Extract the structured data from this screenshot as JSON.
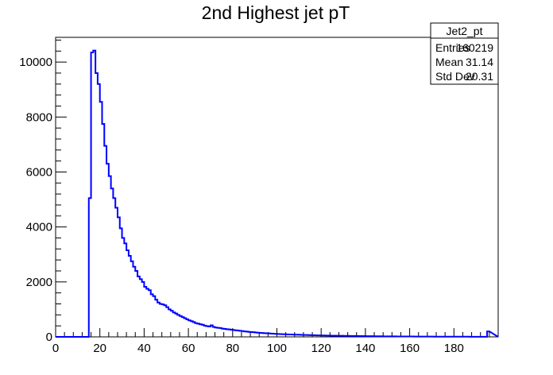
{
  "chart_data": {
    "type": "histogram",
    "title": "2nd Highest jet pT",
    "xlabel": "",
    "ylabel": "",
    "xlim": [
      0,
      200
    ],
    "ylim": [
      0,
      10900
    ],
    "x_ticks": [
      "0",
      "20",
      "40",
      "60",
      "80",
      "100",
      "120",
      "140",
      "160",
      "180"
    ],
    "y_ticks": [
      "0",
      "2000",
      "4000",
      "6000",
      "8000",
      "10000"
    ],
    "line_color": "#0000ff",
    "bin_width": 1,
    "bin_start": 15,
    "values": [
      5050,
      10350,
      10420,
      9600,
      9200,
      8550,
      7750,
      6950,
      6300,
      5850,
      5400,
      5050,
      4700,
      4350,
      3950,
      3600,
      3400,
      3150,
      2950,
      2750,
      2550,
      2400,
      2200,
      2100,
      2000,
      1820,
      1750,
      1700,
      1550,
      1480,
      1350,
      1250,
      1200,
      1180,
      1150,
      1080,
      1000,
      950,
      890,
      850,
      800,
      760,
      720,
      680,
      640,
      600,
      570,
      540,
      500,
      480,
      460,
      440,
      410,
      390,
      380,
      420,
      360,
      340,
      330,
      320,
      300,
      290,
      280,
      270,
      260,
      250,
      240,
      230,
      220,
      210,
      200,
      190,
      180,
      175,
      170,
      160,
      150,
      145,
      140,
      135,
      130,
      125,
      120,
      115,
      110,
      105,
      100,
      98,
      95,
      90,
      88,
      85,
      82,
      80,
      78,
      75,
      72,
      70,
      68,
      65,
      62,
      60,
      58,
      56,
      54,
      52,
      50,
      48,
      46,
      45,
      44,
      42,
      40,
      39,
      38,
      37,
      36,
      35,
      34,
      33,
      32,
      31,
      30,
      29,
      28,
      27,
      26,
      25,
      24,
      23,
      22,
      21,
      20,
      19,
      19,
      18,
      18,
      17,
      17,
      16,
      16,
      15,
      15,
      14,
      14,
      13,
      13,
      12,
      12,
      12,
      11,
      11,
      11,
      10,
      10,
      10,
      9,
      9,
      9,
      8,
      8,
      8,
      8,
      7,
      7,
      7,
      7,
      6,
      6,
      6,
      6,
      6,
      5,
      5,
      5,
      5,
      5,
      4,
      4,
      4,
      200
    ],
    "stats": {
      "name": "Jet2_pt",
      "rows": [
        {
          "label": "Entries",
          "value": "160219"
        },
        {
          "label": "Mean",
          "value": "31.14"
        },
        {
          "label": "Std Dev",
          "value": "20.31"
        }
      ]
    }
  }
}
